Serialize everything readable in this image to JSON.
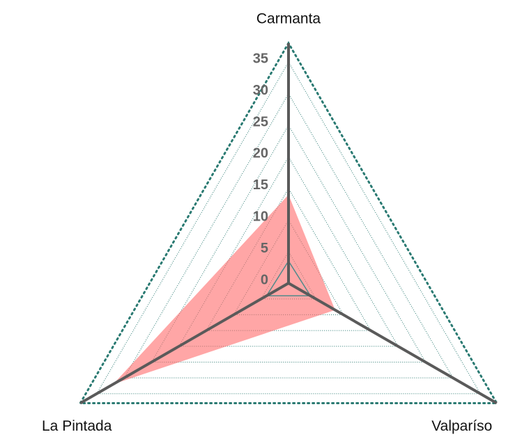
{
  "chart_data": {
    "type": "radar",
    "categories": [
      "Carmanta",
      "La Pintada",
      "Valparíso"
    ],
    "series": [
      {
        "color": "#ff6a6a",
        "values": [
          14,
          32,
          8.5
        ]
      },
      {
        "color": "#4f8a8b",
        "values": [
          3.5,
          4,
          4
        ]
      }
    ],
    "rlim": [
      0,
      38
    ],
    "rticks": [
      0,
      5,
      10,
      15,
      20,
      25,
      30,
      35
    ],
    "grid": true
  }
}
